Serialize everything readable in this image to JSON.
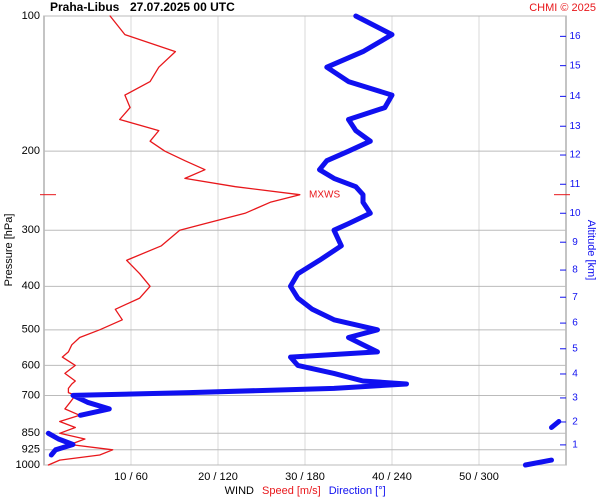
{
  "chart_data": {
    "type": "line",
    "title": "Praha-Libus",
    "subtitle": "27.07.2025 00 UTC",
    "credit": "CHMI © 2025",
    "ylabel": "Pressure [hPa]",
    "y2label": "Altitude [km]",
    "xlabel": "WIND",
    "log_y": true,
    "grid": true,
    "y": [
      1000,
      975,
      950,
      925,
      900,
      875,
      850,
      825,
      800,
      775,
      750,
      725,
      700,
      690,
      675,
      660,
      650,
      625,
      600,
      575,
      560,
      540,
      520,
      500,
      475,
      450,
      425,
      400,
      375,
      350,
      325,
      300,
      290,
      275,
      260,
      250,
      240,
      230,
      220,
      210,
      200,
      190,
      180,
      170,
      160,
      150,
      140,
      130,
      120,
      110,
      100
    ],
    "ylim": [
      1000,
      100
    ],
    "yticks": [
      100,
      200,
      300,
      400,
      500,
      600,
      700,
      850,
      925,
      1000
    ],
    "xlim": [
      0,
      60
    ],
    "x2lim": [
      0,
      360
    ],
    "xticks": [
      {
        "value": 10,
        "label": "10 / 60"
      },
      {
        "value": 20,
        "label": "20 / 120"
      },
      {
        "value": 30,
        "label": "30 / 180"
      },
      {
        "value": 40,
        "label": "40 / 240"
      },
      {
        "value": 50,
        "label": "50 / 300"
      }
    ],
    "y2ticks": [
      1,
      2,
      3,
      4,
      5,
      6,
      7,
      8,
      9,
      10,
      11,
      12,
      13,
      14,
      15,
      16
    ],
    "y2tick_pressures": [
      902,
      802,
      709,
      627,
      551,
      483,
      423,
      368,
      319,
      275,
      237,
      204,
      176,
      151,
      129,
      111
    ],
    "series": [
      {
        "name": "Speed [m/s]",
        "color": "#e8171b",
        "axis": "x",
        "values": [
          0.5,
          1.8,
          6.4,
          7.9,
          3,
          4.7,
          1.8,
          3.6,
          1.8,
          4.1,
          2.4,
          3,
          3.6,
          2.8,
          2.8,
          3.2,
          3.6,
          2.4,
          3.6,
          2.1,
          2.8,
          3.2,
          4.1,
          6.4,
          9,
          8.2,
          11,
          12.2,
          11,
          9.5,
          13.5,
          15.6,
          18.5,
          23.1,
          26,
          29.4,
          22,
          16.2,
          18.5,
          16.2,
          13.9,
          12.2,
          13.2,
          8.7,
          9.9,
          9.3,
          12.2,
          13.2,
          15.1,
          9.3,
          7.6
        ]
      },
      {
        "name": "Direction [°]",
        "color": "#1010f0",
        "axis": "x2",
        "values": [
          332,
          350,
          5,
          8,
          20,
          10,
          3,
          350,
          355,
          25,
          45,
          30,
          20,
          100,
          200,
          250,
          220,
          200,
          175,
          170,
          230,
          220,
          210,
          230,
          200,
          185,
          175,
          170,
          175,
          190,
          205,
          200,
          210,
          225,
          220,
          220,
          215,
          200,
          190,
          195,
          210,
          225,
          215,
          210,
          235,
          240,
          210,
          195,
          220,
          240,
          215
        ]
      }
    ],
    "annotations": [
      {
        "text": "MXWS",
        "y": 250
      }
    ]
  }
}
